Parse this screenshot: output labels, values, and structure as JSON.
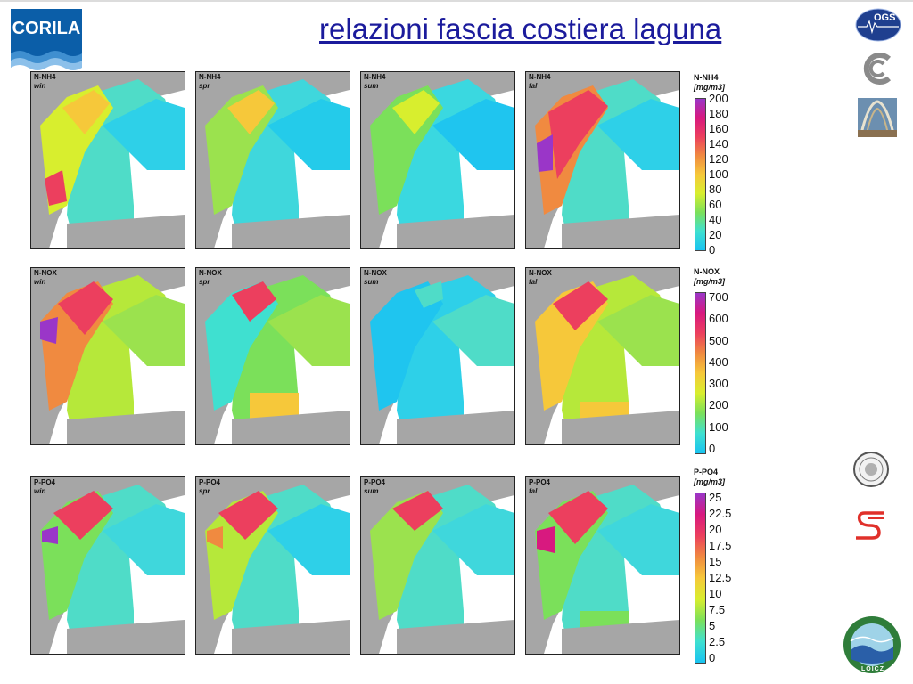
{
  "title": "relazioni fascia costiera laguna",
  "logos": {
    "corila": "CORILA",
    "ogs": "OGS",
    "loicz": "LOICZ"
  },
  "rows": [
    {
      "variable": "N-NH4",
      "unit": "[mg/m3]",
      "seasons": [
        "win",
        "spr",
        "sum",
        "fal"
      ],
      "ticks": [
        "200",
        "180",
        "160",
        "140",
        "120",
        "100",
        "80",
        "60",
        "40",
        "20",
        "0"
      ]
    },
    {
      "variable": "N-NOX",
      "unit": "[mg/m3]",
      "seasons": [
        "win",
        "spr",
        "sum",
        "fal"
      ],
      "ticks": [
        "700",
        "600",
        "500",
        "400",
        "300",
        "200",
        "100",
        "0"
      ]
    },
    {
      "variable": "P-PO4",
      "unit": "[mg/m3]",
      "seasons": [
        "win",
        "spr",
        "sum",
        "fal"
      ],
      "ticks": [
        "25",
        "22.5",
        "20",
        "17.5",
        "15",
        "12.5",
        "10",
        "7.5",
        "5",
        "2.5",
        "0"
      ]
    }
  ],
  "colors": {
    "land": "#a6a6a6",
    "scale": [
      "#19c3f0",
      "#3fe0d0",
      "#7be05a",
      "#d8ee2e",
      "#f6c83a",
      "#f08a40",
      "#ec3f5e",
      "#d8197f",
      "#9a36c8"
    ],
    "title": "#1b1b9c"
  }
}
